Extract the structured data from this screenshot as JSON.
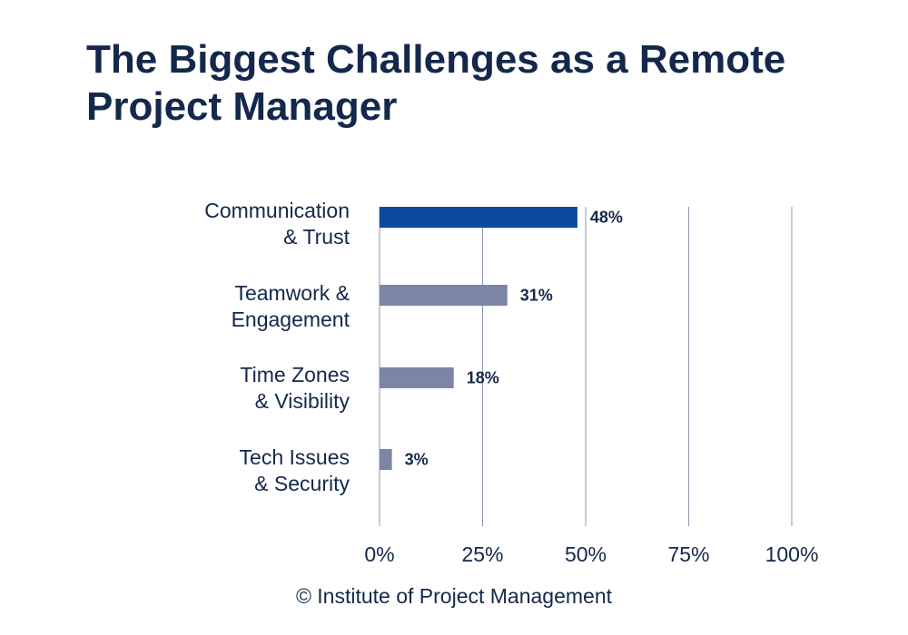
{
  "title_lines": [
    "The Biggest Challenges as a Remote",
    "Project Manager"
  ],
  "footer": "© Institute of Project Management",
  "colors": {
    "highlight_bar": "#0b4a9e",
    "bar": "#7b86a6",
    "text": "#14284b",
    "grid": "#8e97ad"
  },
  "chart_data": {
    "type": "bar",
    "orientation": "horizontal",
    "categories": [
      [
        "Communication",
        "& Trust"
      ],
      [
        "Teamwork &",
        "Engagement"
      ],
      [
        "Time Zones",
        "& Visibility"
      ],
      [
        "Tech Issues",
        "& Security"
      ]
    ],
    "values": [
      48,
      31,
      18,
      3
    ],
    "value_labels": [
      "48%",
      "31%",
      "18%",
      "3%"
    ],
    "highlighted_index": 0,
    "xlim": [
      0,
      100
    ],
    "xticks": [
      0,
      25,
      50,
      75,
      100
    ],
    "xtick_labels": [
      "0%",
      "25%",
      "50%",
      "75%",
      "100%"
    ],
    "grid": "vertical"
  }
}
